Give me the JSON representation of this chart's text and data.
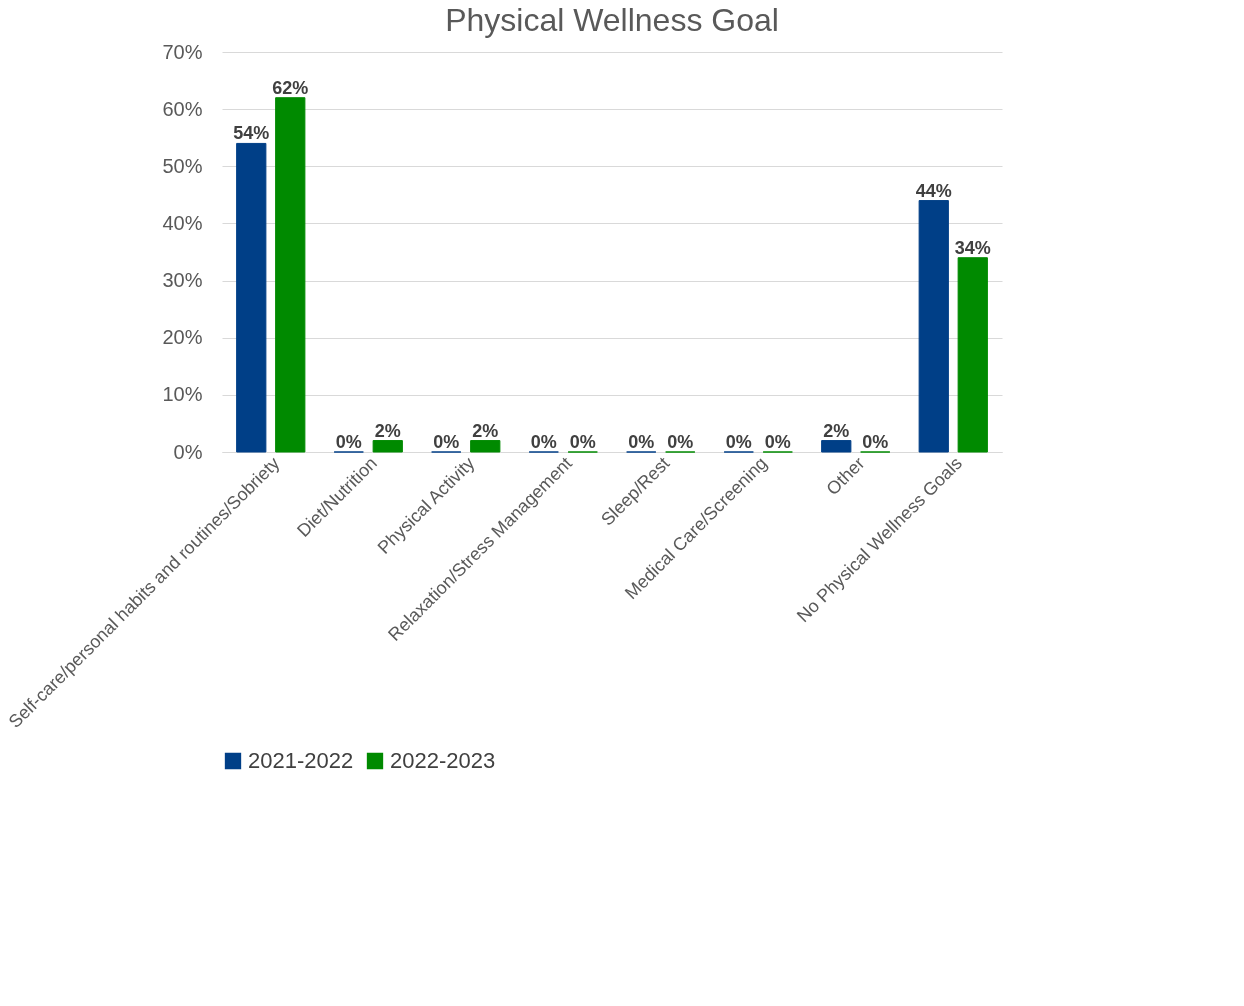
{
  "chart_data": {
    "type": "bar",
    "title": "Physical Wellness Goal",
    "categories": [
      "Self-care/personal habits and routines/Sobriety",
      "Diet/Nutrition",
      "Physical Activity",
      "Relaxation/Stress Management",
      "Sleep/Rest",
      "Medical Care/Screening",
      "Other",
      "No Physical Wellness Goals"
    ],
    "series": [
      {
        "name": "2021-2022",
        "color": "#003f87",
        "values": [
          54,
          0,
          0,
          0,
          0,
          0,
          2,
          44
        ],
        "value_labels": [
          "54%",
          "0%",
          "0%",
          "0%",
          "0%",
          "0%",
          "2%",
          "44%"
        ]
      },
      {
        "name": "2022-2023",
        "color": "#008a00",
        "values": [
          62,
          2,
          2,
          0,
          0,
          0,
          0,
          34
        ],
        "value_labels": [
          "62%",
          "2%",
          "2%",
          "0%",
          "0%",
          "0%",
          "0%",
          "34%"
        ]
      }
    ],
    "ylim": [
      0,
      70
    ],
    "yticks": [
      {
        "value": 0,
        "label": "0%"
      },
      {
        "value": 10,
        "label": "10%"
      },
      {
        "value": 20,
        "label": "20%"
      },
      {
        "value": 30,
        "label": "30%"
      },
      {
        "value": 40,
        "label": "40%"
      },
      {
        "value": 50,
        "label": "50%"
      },
      {
        "value": 60,
        "label": "60%"
      },
      {
        "value": 70,
        "label": "70%"
      }
    ],
    "grid": "y",
    "legend": "bottom"
  }
}
